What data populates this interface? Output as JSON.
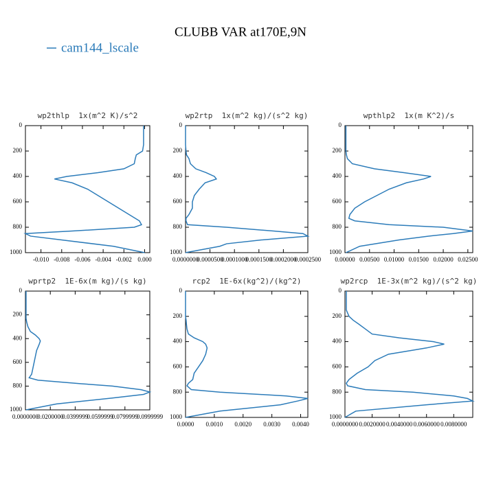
{
  "title": "CLUBB VAR at170E,9N",
  "legend": {
    "name": "cam144_lscale",
    "color": "#2b7bb9"
  },
  "chart_data": [
    {
      "type": "line",
      "title": "wp2thlp  1x(m^2 K)/s^2",
      "y": [
        0,
        50,
        100,
        150,
        200,
        230,
        260,
        300,
        340,
        370,
        400,
        420,
        450,
        500,
        550,
        600,
        650,
        700,
        750,
        780,
        800,
        830,
        850,
        870,
        900,
        950,
        1000
      ],
      "series": [
        {
          "values": [
            -0.0001,
            -0.0001,
            -0.0001,
            -0.0001,
            -0.0002,
            -0.0008,
            -0.0009,
            -0.001,
            -0.002,
            -0.0045,
            -0.0075,
            -0.0087,
            -0.007,
            -0.0055,
            -0.0045,
            -0.0035,
            -0.0025,
            -0.0015,
            -0.0005,
            -0.0003,
            -0.001,
            -0.007,
            -0.0115,
            -0.011,
            -0.008,
            -0.003,
            0
          ]
        }
      ],
      "xlim": [
        -0.0115,
        0.0005
      ],
      "xticks": [
        {
          "value": -0.01,
          "label": "-0.010"
        },
        {
          "value": -0.008,
          "label": "-0.008"
        },
        {
          "value": -0.006,
          "label": "-0.006"
        },
        {
          "value": -0.004,
          "label": "-0.004"
        },
        {
          "value": -0.002,
          "label": "-0.002"
        },
        {
          "value": 0,
          "label": "0.000"
        }
      ],
      "ylim": [
        1000,
        0
      ],
      "yticks": [
        0,
        200,
        400,
        600,
        800,
        1000
      ]
    },
    {
      "type": "line",
      "title": "wp2rtp  1x(m^2 kg)/(s^2 kg)",
      "y": [
        0,
        50,
        100,
        150,
        200,
        230,
        260,
        300,
        340,
        370,
        400,
        420,
        450,
        500,
        550,
        600,
        650,
        700,
        730,
        750,
        780,
        800,
        830,
        850,
        870,
        900,
        930,
        950,
        1000
      ],
      "series": [
        {
          "values": [
            0,
            0,
            0,
            0,
            1e-06,
            2e-06,
            7e-06,
            1e-05,
            2.1e-05,
            4.2e-05,
            5.9e-05,
            6.3e-05,
            4e-05,
            2.8e-05,
            1.8e-05,
            1.4e-05,
            1.4e-05,
            7e-06,
            1e-06,
            1e-06,
            4e-06,
            8.4e-05,
            0.00018,
            0.00024,
            0.00025,
            0.000155,
            8.4e-05,
            7e-05,
            0
          ]
        }
      ],
      "xlim": [
        0,
        0.00025
      ],
      "xticks": [
        {
          "value": 0,
          "label": "0.0000000"
        },
        {
          "value": 5e-05,
          "label": "0.0000500"
        },
        {
          "value": 0.0001,
          "label": "0.0001000"
        },
        {
          "value": 0.00015,
          "label": "0.0001500"
        },
        {
          "value": 0.0002,
          "label": "0.0002000"
        },
        {
          "value": 0.00025,
          "label": "0.0002500"
        }
      ],
      "ylim": [
        1000,
        0
      ],
      "yticks": [
        0,
        200,
        400,
        600,
        800,
        1000
      ]
    },
    {
      "type": "line",
      "title": "wpthlp2  1x(m K^2)/s",
      "y": [
        0,
        50,
        100,
        150,
        200,
        230,
        260,
        300,
        340,
        370,
        400,
        420,
        450,
        500,
        550,
        600,
        650,
        700,
        730,
        750,
        780,
        800,
        830,
        850,
        870,
        900,
        950,
        1000
      ],
      "series": [
        {
          "values": [
            0.0002,
            0.0002,
            0.0002,
            0.0002,
            0.0002,
            0.0003,
            0.0005,
            0.0015,
            0.006,
            0.012,
            0.0175,
            0.016,
            0.0125,
            0.009,
            0.0065,
            0.004,
            0.002,
            0.001,
            0.0008,
            0.002,
            0.009,
            0.02,
            0.026,
            0.022,
            0.017,
            0.011,
            0.003,
            0.0002
          ]
        }
      ],
      "xlim": [
        0,
        0.026
      ],
      "xticks": [
        {
          "value": 0,
          "label": "0.00000"
        },
        {
          "value": 0.005,
          "label": "0.00500"
        },
        {
          "value": 0.01,
          "label": "0.01000"
        },
        {
          "value": 0.015,
          "label": "0.01500"
        },
        {
          "value": 0.02,
          "label": "0.02000"
        },
        {
          "value": 0.025,
          "label": "0.02500"
        }
      ],
      "ylim": [
        1000,
        0
      ],
      "yticks": [
        0,
        200,
        400,
        600,
        800,
        1000
      ]
    },
    {
      "type": "line",
      "title": "wprtp2  1E-6x(m kg)/(s kg)",
      "y": [
        0,
        50,
        100,
        150,
        200,
        230,
        260,
        300,
        340,
        370,
        400,
        420,
        450,
        500,
        550,
        600,
        650,
        700,
        730,
        750,
        780,
        800,
        830,
        850,
        870,
        900,
        950,
        1000
      ],
      "series": [
        {
          "values": [
            0.0005,
            0.0005,
            0.0005,
            0.0005,
            0.0005,
            0.0005,
            0.001,
            0.002,
            0.004,
            0.008,
            0.011,
            0.012,
            0.011,
            0.009,
            0.008,
            0.007,
            0.006,
            0.005,
            0.003,
            0.01,
            0.045,
            0.07,
            0.093,
            0.1,
            0.095,
            0.07,
            0.025,
            0.0005
          ]
        }
      ],
      "xlim": [
        0,
        0.1
      ],
      "xticks": [
        {
          "value": 0,
          "label": "0.0000000"
        },
        {
          "value": 0.02,
          "label": "0.0200000"
        },
        {
          "value": 0.04,
          "label": "0.0399999"
        },
        {
          "value": 0.06,
          "label": "0.0599999"
        },
        {
          "value": 0.08,
          "label": "0.0799999"
        },
        {
          "value": 0.1,
          "label": "0.0999999"
        }
      ],
      "ylim": [
        1000,
        0
      ],
      "yticks": [
        0,
        200,
        400,
        600,
        800,
        1000
      ]
    },
    {
      "type": "line",
      "title": "rcp2  1E-6x(kg^2)/(kg^2)",
      "y": [
        0,
        50,
        100,
        150,
        200,
        230,
        260,
        300,
        340,
        370,
        400,
        420,
        450,
        500,
        550,
        600,
        650,
        700,
        730,
        750,
        780,
        800,
        830,
        850,
        870,
        900,
        950,
        1000
      ],
      "series": [
        {
          "values": [
            0,
            0,
            0,
            0,
            0,
            2e-05,
            3e-05,
            5e-05,
            0.0001,
            0.0003,
            0.0006,
            0.0007,
            0.00075,
            0.0007,
            0.0006,
            0.00045,
            0.0003,
            0.00025,
            0.0001,
            5e-05,
            0.0002,
            0.0012,
            0.0035,
            0.00425,
            0.0039,
            0.0033,
            0.0012,
            0
          ]
        }
      ],
      "xlim": [
        0,
        0.00425
      ],
      "xticks": [
        {
          "value": 0,
          "label": "0.0000"
        },
        {
          "value": 0.001,
          "label": "0.0010"
        },
        {
          "value": 0.002,
          "label": "0.0020"
        },
        {
          "value": 0.003,
          "label": "0.0030"
        },
        {
          "value": 0.004,
          "label": "0.0040"
        }
      ],
      "ylim": [
        1000,
        0
      ],
      "yticks": [
        0,
        200,
        400,
        600,
        800,
        1000
      ]
    },
    {
      "type": "line",
      "title": "wp2rcp  1E-3x(m^2 kg)/(s^2 kg)",
      "y": [
        0,
        50,
        100,
        150,
        200,
        230,
        260,
        300,
        340,
        370,
        400,
        420,
        450,
        500,
        550,
        600,
        650,
        700,
        730,
        750,
        780,
        800,
        830,
        850,
        870,
        900,
        950,
        1000
      ],
      "series": [
        {
          "values": [
            0.0001,
            0.0001,
            0.0001,
            0.0001,
            0.0003,
            0.0006,
            0.001,
            0.0015,
            0.002,
            0.004,
            0.0065,
            0.0073,
            0.006,
            0.0032,
            0.0022,
            0.0017,
            0.0009,
            0.0003,
            0.0001,
            0.0002,
            0.0015,
            0.005,
            0.008,
            0.009,
            0.0094,
            0.006,
            0.0008,
            0
          ]
        }
      ],
      "xlim": [
        0,
        0.0094
      ],
      "xticks": [
        {
          "value": 0,
          "label": "0.0000000"
        },
        {
          "value": 0.002,
          "label": "0.0020000"
        },
        {
          "value": 0.004,
          "label": "0.0040000"
        },
        {
          "value": 0.006,
          "label": "0.0060000"
        },
        {
          "value": 0.008,
          "label": "0.0080000"
        }
      ],
      "ylim": [
        1000,
        0
      ],
      "yticks": [
        0,
        200,
        400,
        600,
        800,
        1000
      ]
    }
  ]
}
